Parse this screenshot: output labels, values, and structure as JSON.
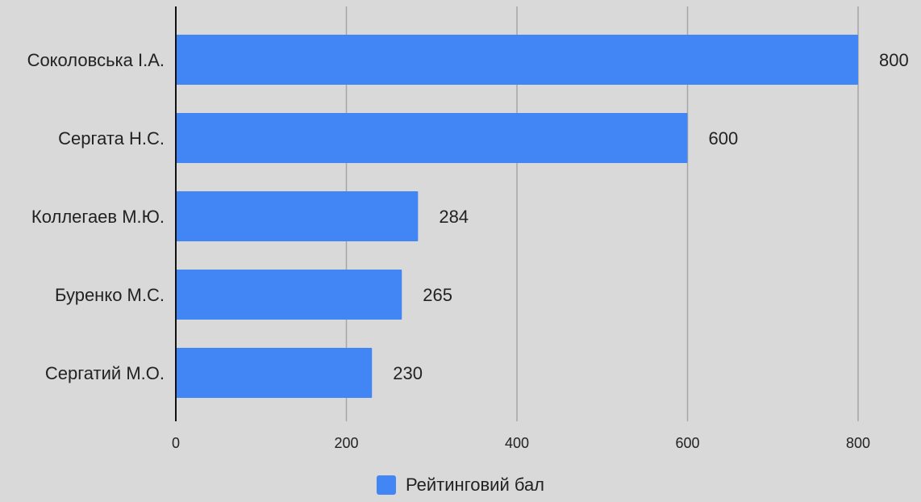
{
  "chart_data": {
    "type": "bar",
    "orientation": "horizontal",
    "categories": [
      "Соколовська І.А.",
      "Сергата Н.С.",
      "Коллегаев М.Ю.",
      "Буренко М.С.",
      "Сергатий М.О."
    ],
    "series": [
      {
        "name": "Рейтинговий бал",
        "values": [
          800,
          600,
          284,
          265,
          230
        ],
        "color": "#4285f4"
      }
    ],
    "xlim": [
      0,
      800
    ],
    "xticks": [
      0,
      200,
      400,
      600,
      800
    ],
    "grid": true,
    "data_labels": true,
    "legend_position": "bottom",
    "title": "",
    "xlabel": "",
    "ylabel": ""
  },
  "colors": {
    "background": "#d9d9d9",
    "bar": "#4285f4",
    "grid": "#a6a6a6",
    "axis": "#111111",
    "text": "#222222"
  }
}
